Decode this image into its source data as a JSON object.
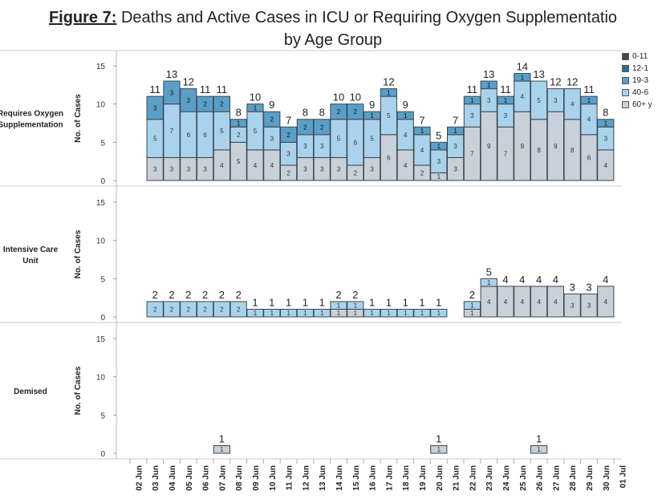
{
  "title": {
    "prefix": "Figure 7:",
    "line1": "Deaths and Active Cases in ICU or Requiring Oxygen Supplementatio",
    "line2": "by Age Group"
  },
  "legend": [
    {
      "label": "0-11",
      "color": "#3f4a57"
    },
    {
      "label": "12-1",
      "color": "#2a6e96"
    },
    {
      "label": "19-3",
      "color": "#5a9fc8"
    },
    {
      "label": "40-6",
      "color": "#a9d3ec"
    },
    {
      "label": "60+ y",
      "color": "#c8d0da"
    }
  ],
  "chart_data": {
    "type": "bar",
    "stacked": true,
    "ylabel": "No. of Cases",
    "ylim": [
      0,
      15
    ],
    "yticks": [
      0,
      5,
      10,
      15
    ],
    "categories": [
      "02 Jun",
      "03 Jun",
      "04 Jun",
      "05 Jun",
      "06 Jun",
      "07 Jun",
      "08 Jun",
      "09 Jun",
      "10 Jun",
      "11 Jun",
      "12 Jun",
      "13 Jun",
      "14 Jun",
      "15 Jun",
      "16 Jun",
      "17 Jun",
      "18 Jun",
      "19 Jun",
      "20 Jun",
      "21 Jun",
      "22 Jun",
      "23 Jun",
      "24 Jun",
      "25 Jun",
      "26 Jun",
      "27 Jun",
      "28 Jun",
      "29 Jun",
      "30 Jun",
      "01 Jul"
    ],
    "panels": [
      {
        "label_lines": [
          "Requires Oxygen",
          "Supplementation"
        ],
        "series": [
          {
            "name": "60+ y",
            "values": [
              null,
              3,
              3,
              3,
              3,
              4,
              5,
              4,
              4,
              2,
              3,
              3,
              3,
              2,
              3,
              6,
              4,
              2,
              1,
              3,
              7,
              9,
              7,
              9,
              8,
              9,
              8,
              6,
              4,
              null
            ]
          },
          {
            "name": "40-6",
            "values": [
              null,
              5,
              7,
              6,
              6,
              5,
              2,
              5,
              3,
              3,
              3,
              3,
              5,
              6,
              5,
              5,
              4,
              4,
              3,
              3,
              3,
              3,
              3,
              4,
              5,
              3,
              4,
              4,
              3,
              null
            ]
          },
          {
            "name": "19-3",
            "values": [
              null,
              3,
              3,
              3,
              2,
              2,
              1,
              1,
              2,
              2,
              2,
              2,
              2,
              2,
              1,
              1,
              1,
              1,
              1,
              1,
              1,
              1,
              1,
              1,
              0,
              0,
              0,
              1,
              1,
              null
            ]
          },
          {
            "name": "12-1",
            "values": [
              null,
              0,
              0,
              0,
              0,
              0,
              0,
              0,
              0,
              0,
              0,
              0,
              0,
              0,
              0,
              0,
              0,
              0,
              0,
              0,
              0,
              0,
              0,
              0,
              0,
              0,
              0,
              0,
              0,
              null
            ]
          },
          {
            "name": "0-11",
            "values": [
              null,
              0,
              0,
              0,
              0,
              0,
              0,
              0,
              0,
              0,
              0,
              0,
              0,
              0,
              0,
              0,
              0,
              0,
              0,
              0,
              0,
              0,
              0,
              0,
              0,
              0,
              0,
              0,
              0,
              null
            ]
          }
        ],
        "totals": [
          null,
          11,
          13,
          12,
          11,
          11,
          8,
          10,
          9,
          7,
          8,
          8,
          10,
          10,
          9,
          12,
          9,
          7,
          5,
          7,
          11,
          13,
          11,
          14,
          13,
          12,
          12,
          11,
          8,
          null
        ]
      },
      {
        "label_lines": [
          "Intensive Care",
          "Unit"
        ],
        "series": [
          {
            "name": "60+ y",
            "values": [
              null,
              0,
              0,
              0,
              0,
              0,
              0,
              0,
              0,
              0,
              0,
              0,
              1,
              1,
              0,
              0,
              0,
              0,
              0,
              null,
              1,
              4,
              4,
              4,
              4,
              4,
              3,
              3,
              4,
              null
            ]
          },
          {
            "name": "40-6",
            "values": [
              null,
              2,
              2,
              2,
              2,
              2,
              2,
              1,
              1,
              1,
              1,
              1,
              1,
              1,
              1,
              1,
              1,
              1,
              1,
              null,
              1,
              1,
              0,
              0,
              0,
              0,
              0,
              0,
              0,
              null
            ]
          }
        ],
        "totals": [
          null,
          2,
          2,
          2,
          2,
          2,
          2,
          1,
          1,
          1,
          1,
          1,
          2,
          2,
          1,
          1,
          1,
          1,
          1,
          null,
          2,
          5,
          4,
          4,
          4,
          4,
          3,
          3,
          4,
          null
        ]
      },
      {
        "label_lines": [
          "Demised"
        ],
        "series": [
          {
            "name": "60+ y",
            "values": [
              null,
              null,
              null,
              null,
              null,
              1,
              null,
              null,
              null,
              null,
              null,
              null,
              null,
              null,
              null,
              null,
              null,
              null,
              1,
              null,
              null,
              null,
              null,
              null,
              1,
              null,
              null,
              null,
              null,
              null
            ]
          }
        ],
        "totals": [
          null,
          null,
          null,
          null,
          null,
          1,
          null,
          null,
          null,
          null,
          null,
          null,
          null,
          null,
          null,
          null,
          null,
          null,
          1,
          null,
          null,
          null,
          null,
          null,
          1,
          null,
          null,
          null,
          null,
          null
        ]
      }
    ]
  }
}
